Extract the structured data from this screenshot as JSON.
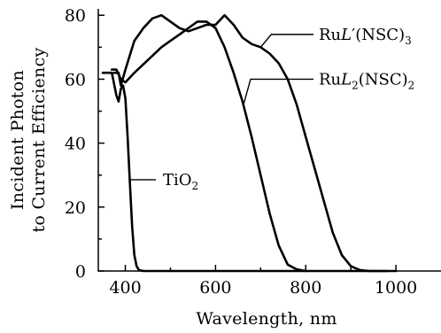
{
  "chart_data": {
    "type": "line",
    "title": "",
    "xlabel": "Wavelength, nm",
    "ylabel_lines": [
      "Incident Photon",
      "to Current Efficiency"
    ],
    "xlim": [
      340,
      1100
    ],
    "ylim": [
      0,
      82
    ],
    "xticks": [
      400,
      600,
      800,
      1000
    ],
    "yticks": [
      0,
      20,
      40,
      60,
      80
    ],
    "grid": false,
    "series": [
      {
        "name": "TiO2",
        "label_base": "TiO",
        "label_sub": "2",
        "x": [
          350,
          370,
          380,
          385,
          390,
          395,
          400,
          405,
          410,
          415,
          420,
          425,
          430,
          440,
          460,
          500,
          600,
          700,
          800,
          900,
          1000
        ],
        "y": [
          62,
          62,
          55,
          53,
          57,
          58,
          54,
          42,
          28,
          14,
          5,
          1.5,
          0.3,
          0,
          0,
          0,
          0,
          0,
          0,
          0,
          0
        ]
      },
      {
        "name": "RuL2(NSC)2",
        "label_base": "Ru",
        "label_italic": "L",
        "label_sub1": "2",
        "label_mid": "(NSC)",
        "label_sub2": "2",
        "x": [
          370,
          380,
          390,
          400,
          420,
          450,
          480,
          500,
          520,
          550,
          560,
          580,
          600,
          620,
          640,
          660,
          680,
          700,
          720,
          740,
          760,
          780,
          800
        ],
        "y": [
          63,
          63,
          60,
          59,
          62,
          66,
          70,
          72,
          74,
          77,
          78,
          78,
          76,
          70,
          62,
          53,
          42,
          30,
          18,
          8,
          2,
          0.5,
          0
        ]
      },
      {
        "name": "RuL'(NSC)3",
        "label_base": "Ru",
        "label_italic": "L",
        "label_prime": "′",
        "label_mid": "(NSC)",
        "label_sub2": "3",
        "x": [
          375,
          385,
          390,
          400,
          420,
          440,
          460,
          480,
          500,
          520,
          540,
          560,
          580,
          600,
          620,
          640,
          660,
          680,
          700,
          720,
          740,
          760,
          780,
          800,
          820,
          840,
          860,
          880,
          900,
          920,
          940,
          960,
          980
        ],
        "y": [
          62,
          62,
          58,
          63,
          72,
          76,
          79,
          80,
          78,
          76,
          75,
          76,
          77,
          77,
          80,
          77,
          73,
          71,
          70,
          68,
          65,
          60,
          52,
          42,
          32,
          22,
          12,
          5,
          1.5,
          0.3,
          0,
          0,
          0
        ]
      }
    ]
  }
}
